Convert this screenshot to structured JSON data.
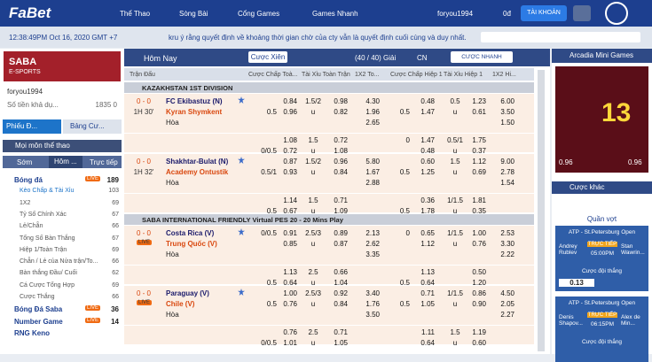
{
  "nav": {
    "logo": "FaBet",
    "items": [
      "Thể Thao",
      "Sòng Bài",
      "Cổng Games",
      "Games Nhanh"
    ],
    "user": "foryou1994",
    "balance": "0đ",
    "account": "TÀI KHOẢN"
  },
  "ticker": {
    "time": "12:38:49PM Oct 16, 2020 GMT +7",
    "message": "kru ý rằng quyết định về khoảng thời gian chờ của cty vẫn là quyết định cuối cùng và duy nhất."
  },
  "sidebar": {
    "banner": {
      "title": "SABA",
      "subtitle": "E-SPORTS"
    },
    "user": "foryou1994",
    "balance_label": "Số tiền khả dụ...",
    "balance": "1835 0",
    "tabs": [
      "Phiếu Đ...",
      "Bảng Cư..."
    ],
    "section": "Mọi môn thể thao",
    "period_tabs": [
      "Sớm",
      "Hôm ...",
      "Trực tiếp"
    ],
    "sports": [
      {
        "name": "Bóng đá",
        "live": "LIVE",
        "count": "189",
        "markets": [
          {
            "name": "Kèo Chấp & Tài Xỉu",
            "count": "103"
          },
          {
            "name": "1X2",
            "count": "69"
          },
          {
            "name": "Tỷ Số Chính Xác",
            "count": "67"
          },
          {
            "name": "Lẻ/Chẵn",
            "count": "66"
          },
          {
            "name": "Tổng Số Bàn Thắng",
            "count": "67"
          },
          {
            "name": "Hiệp 1/Toàn Trận",
            "count": "69"
          },
          {
            "name": "Chẵn / Lẻ của Nửa trận/To...",
            "count": "66"
          },
          {
            "name": "Bàn thắng Đầu/ Cuối",
            "count": "62"
          },
          {
            "name": "Cá Cược Tổng Hợp",
            "count": "69"
          },
          {
            "name": "Cược Thắng",
            "count": "66"
          }
        ]
      },
      {
        "name": "Bóng Đá Saba",
        "live": "LIVE",
        "count": "36"
      },
      {
        "name": "Number Game",
        "live": "LIVE",
        "count": "14"
      },
      {
        "name": "RNG Keno"
      }
    ]
  },
  "main": {
    "title": "Hôm Nay",
    "parlay": "Cược Xiên",
    "leagues_filter": "(40 / 40) Giải",
    "lang": "CN",
    "quick_bet": "CƯỢC NHANH",
    "columns": [
      "Trận Đấu",
      "Cược Chấp Toà...",
      "Tài Xỉu Toàn Trận",
      "1X2 To...",
      "Cược Chấp Hiệp 1",
      "Tài Xỉu Hiệp 1",
      "1X2 Hi..."
    ],
    "leagues": [
      {
        "name": "KAZAKHSTAN 1ST DIVISION",
        "matches": [
          {
            "score": "0 - 0",
            "status": "1H 30'",
            "home": "FC Ekibastuz (N)",
            "away": "Kyran Shymkent",
            "draw": "Hòa",
            "main": {
              "hdp_lines": [
                null,
                "0.5"
              ],
              "hdp": [
                "0.84",
                "0.96"
              ],
              "ou_line": "1.5/2",
              "ou_u": "u",
              "ou": [
                "0.98",
                "0.82"
              ],
              "x12": [
                "4.30",
                "1.96",
                "2.65"
              ],
              "h1_hdp_lines": [
                null,
                "0.5"
              ],
              "h1_hdp": [
                "0.48",
                "1.47"
              ],
              "h1_ou_line": "0.5",
              "h1_ou_u": "u",
              "h1_ou": [
                "1.23",
                "0.61"
              ],
              "h1_x12": [
                "6.00",
                "3.50",
                "1.50"
              ]
            },
            "alt": {
              "hdp_lines": [
                null,
                "0/0.5"
              ],
              "hdp": [
                "1.08",
                "0.72"
              ],
              "ou_line": "1.5",
              "ou_u": "u",
              "ou": [
                "0.72",
                "1.08"
              ],
              "h1_hdp_lines": [
                "0",
                null
              ],
              "h1_hdp": [
                "1.47",
                "0.48"
              ],
              "h1_ou_line": "0.5/1",
              "h1_ou_u": "u",
              "h1_ou": [
                "1.75",
                "0.37"
              ]
            }
          },
          {
            "score": "0 - 0",
            "status": "1H 32'",
            "home": "Shakhtar-Bulat (N)",
            "away": "Academy Ontustik",
            "draw": "Hòa",
            "main": {
              "hdp_lines": [
                null,
                "0.5/1"
              ],
              "hdp": [
                "0.87",
                "0.93"
              ],
              "ou_line": "1.5/2",
              "ou_u": "u",
              "ou": [
                "0.96",
                "0.84"
              ],
              "x12": [
                "5.80",
                "1.67",
                "2.88"
              ],
              "h1_hdp_lines": [
                null,
                "0.5"
              ],
              "h1_hdp": [
                "0.60",
                "1.25"
              ],
              "h1_ou_line": "1.5",
              "h1_ou_u": "u",
              "h1_ou": [
                "1.12",
                "0.69"
              ],
              "h1_x12": [
                "9.00",
                "2.78",
                "1.54"
              ]
            },
            "alt": {
              "hdp_lines": [
                null,
                "0.5"
              ],
              "hdp": [
                "1.14",
                "0.67"
              ],
              "ou_line": "1.5",
              "ou_u": "u",
              "ou": [
                "0.71",
                "1.09"
              ],
              "h1_hdp_lines": [
                null,
                "0.5"
              ],
              "h1_hdp": [
                "0.36",
                "1.78"
              ],
              "h1_ou_line": "1/1.5",
              "h1_ou_u": "u",
              "h1_ou": [
                "1.81",
                "0.35"
              ]
            }
          }
        ]
      },
      {
        "name": "SABA INTERNATIONAL FRIENDLY Virtual PES 20 - 20 Mins Play",
        "matches": [
          {
            "score": "0 - 0",
            "status": "LIVE",
            "home": "Costa Rica (V)",
            "away": "Trung Quốc (V)",
            "draw": "Hòa",
            "main": {
              "hdp_lines": [
                "0/0.5",
                null
              ],
              "hdp": [
                "0.91",
                "0.85"
              ],
              "ou_line": "2.5/3",
              "ou_u": "u",
              "ou": [
                "0.89",
                "0.87"
              ],
              "x12": [
                "2.13",
                "2.62",
                "3.35"
              ],
              "h1_hdp_lines": [
                "0",
                null
              ],
              "h1_hdp": [
                "0.65",
                "1.12"
              ],
              "h1_ou_line": "1/1.5",
              "h1_ou_u": "u",
              "h1_ou": [
                "1.00",
                "0.76"
              ],
              "h1_x12": [
                "2.53",
                "3.30",
                "2.22"
              ]
            },
            "alt": {
              "hdp_lines": [
                null,
                "0.5"
              ],
              "hdp": [
                "1.13",
                "0.64"
              ],
              "ou_line": "2.5",
              "ou_u": "u",
              "ou": [
                "0.66",
                "1.04"
              ],
              "h1_hdp_lines": [
                null,
                "0.5"
              ],
              "h1_hdp": [
                "1.13",
                "0.64"
              ],
              "h1_ou": [
                "0.50",
                "1.20"
              ]
            }
          },
          {
            "score": "0 - 0",
            "status": "LIVE",
            "home": "Paraguay (V)",
            "away": "Chile (V)",
            "draw": "Hòa",
            "main": {
              "hdp_lines": [
                null,
                "0.5"
              ],
              "hdp": [
                "1.00",
                "0.76"
              ],
              "ou_line": "2.5/3",
              "ou_u": "u",
              "ou": [
                "0.92",
                "0.84"
              ],
              "x12": [
                "3.40",
                "1.76",
                "3.50"
              ],
              "h1_hdp_lines": [
                null,
                "0.5"
              ],
              "h1_hdp": [
                "0.71",
                "1.05"
              ],
              "h1_ou_line": "1/1.5",
              "h1_ou_u": "u",
              "h1_ou": [
                "0.86",
                "0.90"
              ],
              "h1_x12": [
                "4.50",
                "2.05",
                "2.27"
              ]
            },
            "alt": {
              "hdp_lines": [
                null,
                "0/0.5"
              ],
              "hdp": [
                "0.76",
                "1.01"
              ],
              "ou_line": "2.5",
              "ou_u": "u",
              "ou": [
                "0.71",
                "1.05"
              ],
              "h1_hdp": [
                "1.11",
                "0.64"
              ],
              "h1_ou_line": "1.5",
              "h1_ou_u": "u",
              "h1_ou": [
                "1.19",
                "0.60"
              ]
            }
          }
        ]
      }
    ]
  },
  "right": {
    "games_title": "Arcadia Mini Games",
    "game_number": "13",
    "game_odds": [
      "0.96",
      "0.96"
    ],
    "other_title": "Cược khác",
    "sport": "Quần vợt",
    "cards": [
      {
        "league": "ATP - St.Petersburg Open",
        "home": "Andrey Rublev",
        "away": "Stan Wawrin...",
        "status": "TRỰC TIẾP",
        "time": "05:00PM",
        "market": "Cược đội thắng",
        "odds": "0.13"
      },
      {
        "league": "ATP - St.Petersburg Open",
        "home": "Denis Shapov...",
        "away": "Alex de Min...",
        "status": "TRỰC TIẾP",
        "time": "06:15PM",
        "market": "Cược đội thắng"
      }
    ]
  }
}
